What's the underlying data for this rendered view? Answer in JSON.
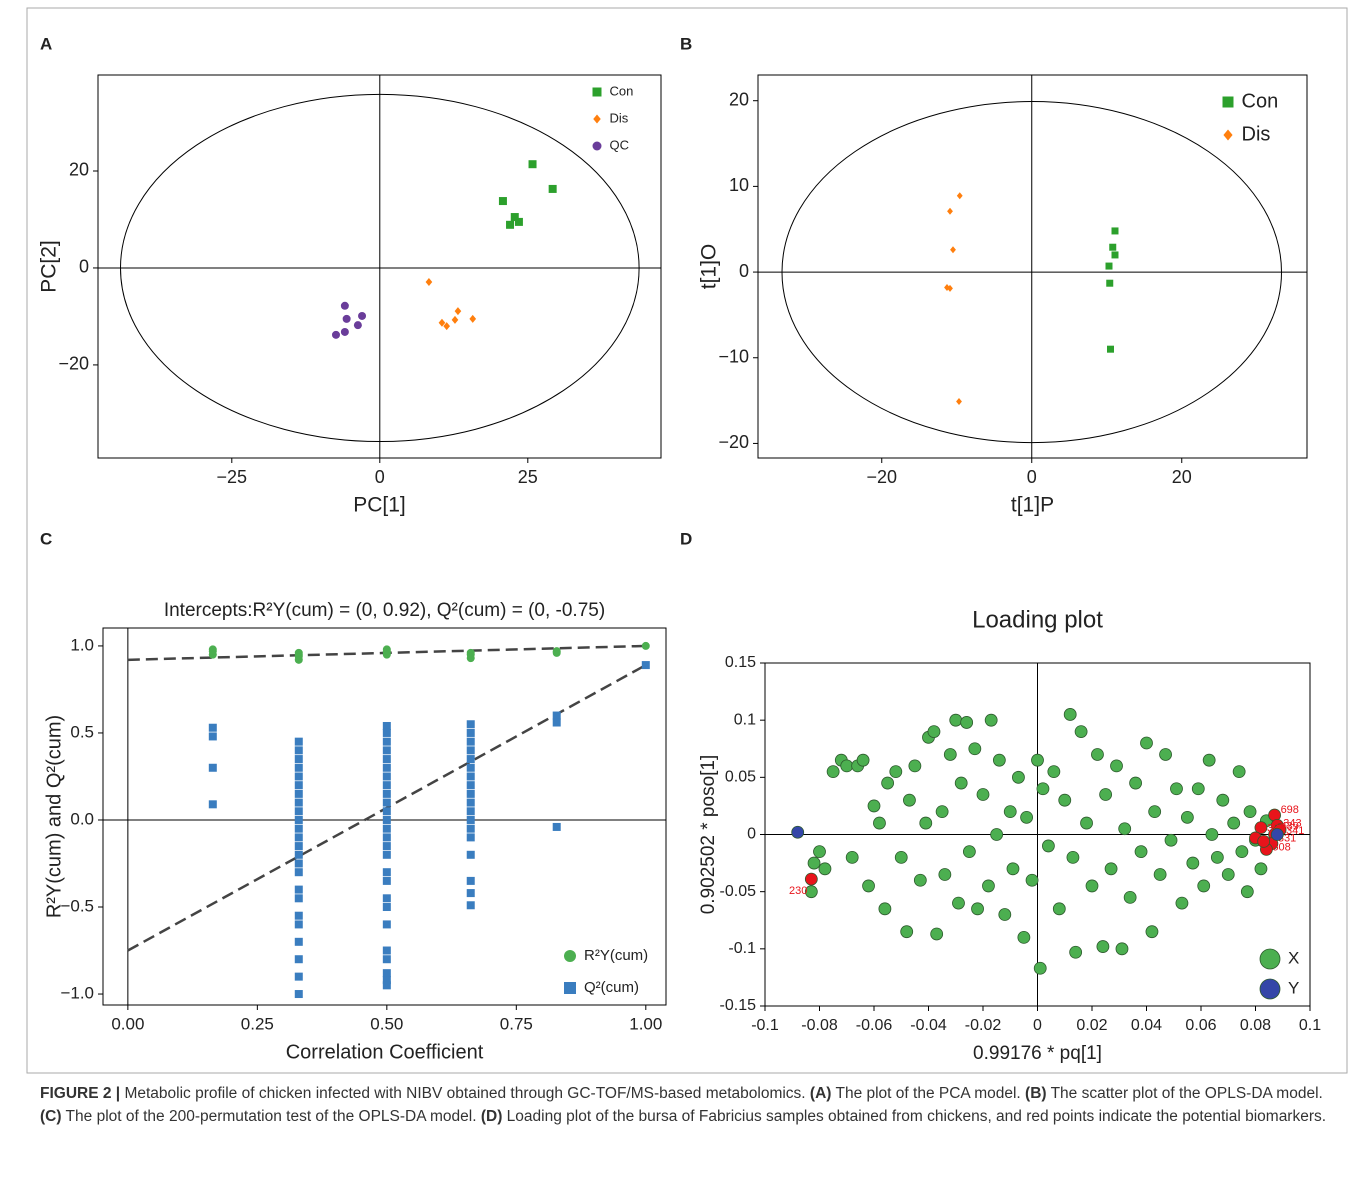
{
  "chart_data": [
    {
      "type": "scatter",
      "panel": "A",
      "x_label": "PC[1]",
      "y_label": "PC[2]",
      "xlim": [
        -47.6,
        47.5
      ],
      "ylim": [
        -39.2,
        39.8
      ],
      "xticks": [
        {
          "value": -25,
          "label": "−25"
        },
        0,
        25
      ],
      "yticks": [
        {
          "value": -20,
          "label": "−20"
        },
        0,
        20
      ],
      "ellipse_radii": [
        43.8,
        35.8
      ],
      "zero_lines": true,
      "legend": "upper right",
      "series": [
        {
          "name": "Con",
          "color": "#2ca02c",
          "marker": "square",
          "x": [
            25.8,
            29.2,
            20.8,
            22.8,
            23.5,
            22.0
          ],
          "values": [
            21.4,
            16.3,
            13.8,
            10.5,
            9.5,
            8.9
          ]
        },
        {
          "name": "Dis",
          "color": "#ff7f0e",
          "marker": "diamond",
          "x": [
            8.3,
            13.2,
            12.7,
            15.7,
            10.5,
            11.3
          ],
          "values": [
            -2.9,
            -8.9,
            -10.7,
            -10.5,
            -11.3,
            -12.0
          ]
        },
        {
          "name": "QC",
          "color": "#6a3d9a",
          "marker": "circle",
          "x": [
            -5.9,
            -3.0,
            -5.6,
            -3.7,
            -5.9,
            -7.4
          ],
          "values": [
            -7.8,
            -9.9,
            -10.5,
            -11.8,
            -13.2,
            -13.8
          ]
        }
      ]
    },
    {
      "type": "scatter",
      "panel": "B",
      "x_label": "t[1]P",
      "y_label": "t[1]O",
      "xlim": [
        -36.5,
        36.7
      ],
      "ylim": [
        -21.7,
        23.0
      ],
      "xticks": [
        {
          "value": -20,
          "label": "−20"
        },
        0,
        20
      ],
      "yticks": [
        {
          "value": -20,
          "label": "−20"
        },
        {
          "value": -10,
          "label": "−10"
        },
        0,
        10,
        20
      ],
      "ellipse_radii": [
        33.3,
        19.9
      ],
      "zero_lines": true,
      "legend": "upper right",
      "series": [
        {
          "name": "Con",
          "color": "#2ca02c",
          "marker": "square",
          "x": [
            11.1,
            10.8,
            11.1,
            10.3,
            10.4,
            10.5
          ],
          "values": [
            4.8,
            2.9,
            2.0,
            0.7,
            -1.3,
            -9.0
          ]
        },
        {
          "name": "Dis",
          "color": "#ff7f0e",
          "marker": "diamond",
          "x": [
            -9.6,
            -10.9,
            -10.5,
            -11.3,
            -10.9,
            -9.7
          ],
          "values": [
            8.9,
            7.1,
            2.6,
            -1.8,
            -1.9,
            -15.1
          ]
        }
      ]
    },
    {
      "type": "scatter",
      "panel": "C",
      "title": "Intercepts:R²Y(cum) = (0, 0.92), Q²(cum) = (0, -0.75)",
      "x_label": "Correlation Coefficient",
      "y_label": "R²Y(cum) and Q²(cum)",
      "xlim": [
        -0.048,
        1.039
      ],
      "ylim": [
        -1.063,
        1.103
      ],
      "xticks": [
        {
          "value": 0,
          "label": "0.00"
        },
        {
          "value": 0.25,
          "label": "0.25"
        },
        {
          "value": 0.5,
          "label": "0.50"
        },
        {
          "value": 0.75,
          "label": "0.75"
        },
        {
          "value": 1,
          "label": "1.00"
        }
      ],
      "yticks": [
        {
          "value": -1,
          "label": "−1.0"
        },
        {
          "value": -0.5,
          "label": "−0.5"
        },
        {
          "value": 0,
          "label": "0.0"
        },
        {
          "value": 0.5,
          "label": "0.5"
        },
        {
          "value": 1,
          "label": "1.0"
        }
      ],
      "zero_lines": true,
      "legend": "lower right",
      "fit_lines": [
        {
          "x": [
            0,
            1
          ],
          "y": [
            0.92,
            1.0
          ]
        },
        {
          "x": [
            0,
            1
          ],
          "y": [
            -0.75,
            0.89
          ]
        }
      ],
      "series": [
        {
          "name": "R²Y(cum)",
          "color": "#4caf50",
          "marker": "circle",
          "x": [
            0.164,
            0.164,
            0.164,
            0.33,
            0.33,
            0.33,
            0.33,
            0.5,
            0.5,
            0.5,
            0.5,
            0.662,
            0.662,
            0.662,
            0.828,
            0.828,
            1.0
          ],
          "values": [
            0.95,
            0.97,
            0.98,
            0.92,
            0.94,
            0.95,
            0.96,
            0.95,
            0.96,
            0.97,
            0.98,
            0.93,
            0.95,
            0.96,
            0.96,
            0.97,
            1.0
          ]
        },
        {
          "name": "Q²(cum)",
          "color": "#3a7dbf",
          "marker": "square",
          "x": [
            0.164,
            0.164,
            0.164,
            0.164,
            0.33,
            0.33,
            0.33,
            0.33,
            0.33,
            0.33,
            0.33,
            0.33,
            0.33,
            0.33,
            0.33,
            0.33,
            0.33,
            0.33,
            0.33,
            0.33,
            0.33,
            0.33,
            0.33,
            0.33,
            0.33,
            0.33,
            0.33,
            0.33,
            0.5,
            0.5,
            0.5,
            0.5,
            0.5,
            0.5,
            0.5,
            0.5,
            0.5,
            0.5,
            0.5,
            0.5,
            0.5,
            0.5,
            0.5,
            0.5,
            0.5,
            0.5,
            0.5,
            0.5,
            0.5,
            0.5,
            0.5,
            0.5,
            0.5,
            0.5,
            0.662,
            0.662,
            0.662,
            0.662,
            0.662,
            0.662,
            0.662,
            0.662,
            0.662,
            0.662,
            0.662,
            0.662,
            0.662,
            0.662,
            0.662,
            0.662,
            0.662,
            0.662,
            0.828,
            0.828,
            0.828,
            1.0
          ],
          "values": [
            0.53,
            0.48,
            0.3,
            0.09,
            0.45,
            0.4,
            0.35,
            0.3,
            0.25,
            0.2,
            0.15,
            0.1,
            0.05,
            0,
            -0.05,
            -0.1,
            -0.15,
            -0.2,
            -0.25,
            -0.3,
            -0.4,
            -0.45,
            -0.55,
            -0.6,
            -0.7,
            -0.8,
            -0.9,
            -1.0,
            0.54,
            0.5,
            0.45,
            0.4,
            0.35,
            0.3,
            0.25,
            0.2,
            0.15,
            0.1,
            0.05,
            0,
            -0.05,
            -0.1,
            -0.15,
            -0.2,
            -0.3,
            -0.35,
            -0.45,
            -0.5,
            -0.6,
            -0.75,
            -0.8,
            -0.88,
            -0.92,
            -0.95,
            0.55,
            0.5,
            0.45,
            0.4,
            0.35,
            0.3,
            0.25,
            0.2,
            0.15,
            0.1,
            0.05,
            0,
            -0.05,
            -0.1,
            -0.2,
            -0.35,
            -0.42,
            -0.49,
            0.6,
            0.56,
            -0.04,
            0.89
          ]
        }
      ]
    },
    {
      "type": "scatter",
      "panel": "D",
      "title": "Loading plot",
      "x_label": "0.99176 * pq[1]",
      "y_label": "0.902502 * poso[1]",
      "xlim": [
        -0.1,
        0.1
      ],
      "ylim": [
        -0.15,
        0.15
      ],
      "xticks": [
        -0.1,
        -0.08,
        -0.06,
        -0.04,
        -0.02,
        0,
        0.02,
        0.04,
        0.06,
        0.08,
        0.1
      ],
      "yticks": [
        -0.15,
        -0.1,
        -0.05,
        0,
        0.05,
        0.1,
        0.15
      ],
      "zero_lines": true,
      "legend": "lower right",
      "series": [
        {
          "name": "X",
          "color": "#4caf50",
          "marker": "circle",
          "x": [
            -0.083,
            -0.082,
            -0.08,
            -0.078,
            -0.075,
            -0.072,
            -0.07,
            -0.068,
            -0.066,
            -0.064,
            -0.062,
            -0.06,
            -0.058,
            -0.056,
            -0.055,
            -0.052,
            -0.05,
            -0.048,
            -0.047,
            -0.045,
            -0.043,
            -0.041,
            -0.04,
            -0.038,
            -0.037,
            -0.035,
            -0.034,
            -0.032,
            -0.03,
            -0.029,
            -0.028,
            -0.026,
            -0.025,
            -0.023,
            -0.022,
            -0.02,
            -0.018,
            -0.017,
            -0.015,
            -0.014,
            -0.012,
            -0.01,
            -0.009,
            -0.007,
            -0.005,
            -0.004,
            -0.002,
            0,
            0.001,
            0.002,
            0.004,
            0.006,
            0.008,
            0.01,
            0.012,
            0.013,
            0.014,
            0.016,
            0.018,
            0.02,
            0.022,
            0.024,
            0.025,
            0.027,
            0.029,
            0.031,
            0.032,
            0.034,
            0.036,
            0.038,
            0.04,
            0.042,
            0.043,
            0.045,
            0.047,
            0.049,
            0.051,
            0.053,
            0.055,
            0.057,
            0.059,
            0.061,
            0.063,
            0.064,
            0.066,
            0.068,
            0.07,
            0.072,
            0.074,
            0.075,
            0.077,
            0.078,
            0.08,
            0.082,
            0.084
          ],
          "values": [
            -0.05,
            -0.025,
            -0.015,
            -0.03,
            0.055,
            0.065,
            0.06,
            -0.02,
            0.06,
            0.065,
            -0.045,
            0.025,
            0.01,
            -0.065,
            0.045,
            0.055,
            -0.02,
            -0.085,
            0.03,
            0.06,
            -0.04,
            0.01,
            0.085,
            0.09,
            -0.087,
            0.02,
            -0.035,
            0.07,
            0.1,
            -0.06,
            0.045,
            0.098,
            -0.015,
            0.075,
            -0.065,
            0.035,
            -0.045,
            0.1,
            0,
            0.065,
            -0.07,
            0.02,
            -0.03,
            0.05,
            -0.09,
            0.015,
            -0.04,
            0.065,
            -0.117,
            0.04,
            -0.01,
            0.055,
            -0.065,
            0.03,
            0.105,
            -0.02,
            -0.103,
            0.09,
            0.01,
            -0.045,
            0.07,
            -0.098,
            0.035,
            -0.03,
            0.06,
            -0.1,
            0.005,
            -0.055,
            0.045,
            -0.015,
            0.08,
            -0.085,
            0.02,
            -0.035,
            0.07,
            -0.005,
            0.04,
            -0.06,
            0.015,
            -0.025,
            0.04,
            -0.045,
            0.065,
            0,
            -0.02,
            0.03,
            -0.035,
            0.01,
            0.055,
            -0.015,
            -0.05,
            0.02,
            -0.005,
            -0.03,
            0.012
          ]
        },
        {
          "color": "#e8141b",
          "marker": "circle",
          "x": [
            -0.083,
            0.087,
            0.088,
            0.089,
            0.087,
            0.086,
            0.084,
            0.082,
            0.08,
            0.083
          ],
          "values": [
            -0.039,
            0.017,
            0.008,
            0.004,
            0.0,
            -0.008,
            -0.013,
            0.006,
            -0.003,
            -0.006
          ],
          "labels": [
            "230",
            "698",
            "343",
            "341",
            "439",
            "331",
            "508",
            "388",
            null,
            null
          ]
        },
        {
          "name": "Y",
          "color": "#3446a8",
          "marker": "circle",
          "x": [
            -0.088,
            0.088
          ],
          "values": [
            0.002,
            0.0
          ]
        }
      ]
    }
  ],
  "caption": [
    {
      "text": "FIGURE 2 |",
      "bold": true
    },
    {
      "text": " Metabolic profile of chicken infected with NIBV obtained through GC-TOF/MS-based metabolomics. ",
      "bold": false
    },
    {
      "text": "(A)",
      "bold": true
    },
    {
      "text": " The plot of the PCA model. ",
      "bold": false
    },
    {
      "text": "(B)",
      "bold": true
    },
    {
      "text": " The scatter plot of the OPLS-DA model. ",
      "bold": false
    },
    {
      "text": "(C)",
      "bold": true
    },
    {
      "text": " The plot of the 200-permutation test of the OPLS-DA model. ",
      "bold": false
    },
    {
      "text": "(D)",
      "bold": true
    },
    {
      "text": " Loading plot of the bursa of Fabricius samples obtained from chickens, and red points indicate the potential biomarkers.",
      "bold": false
    }
  ]
}
